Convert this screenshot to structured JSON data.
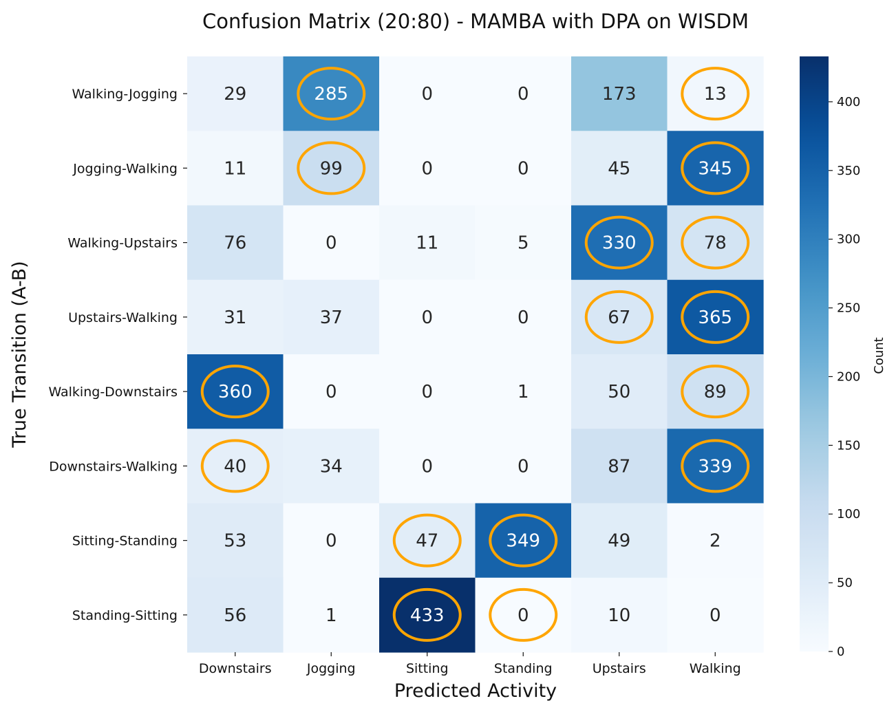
{
  "chart_data": {
    "type": "heatmap",
    "title": "Confusion Matrix (20:80) - MAMBA with DPA on WISDM",
    "xlabel": "Predicted Activity",
    "ylabel": "True Transition (A-B)",
    "x_categories": [
      "Downstairs",
      "Jogging",
      "Sitting",
      "Standing",
      "Upstairs",
      "Walking"
    ],
    "y_categories": [
      "Walking-Jogging",
      "Jogging-Walking",
      "Walking-Upstairs",
      "Upstairs-Walking",
      "Walking-Downstairs",
      "Downstairs-Walking",
      "Sitting-Standing",
      "Standing-Sitting"
    ],
    "values": [
      [
        29,
        285,
        0,
        0,
        173,
        13
      ],
      [
        11,
        99,
        0,
        0,
        45,
        345
      ],
      [
        76,
        0,
        11,
        5,
        330,
        78
      ],
      [
        31,
        37,
        0,
        0,
        67,
        365
      ],
      [
        360,
        0,
        0,
        1,
        50,
        89
      ],
      [
        40,
        34,
        0,
        0,
        87,
        339
      ],
      [
        53,
        0,
        47,
        349,
        49,
        2
      ],
      [
        56,
        1,
        433,
        0,
        10,
        0
      ]
    ],
    "highlighted_cells": [
      [
        0,
        1
      ],
      [
        0,
        5
      ],
      [
        1,
        1
      ],
      [
        1,
        5
      ],
      [
        2,
        4
      ],
      [
        2,
        5
      ],
      [
        3,
        4
      ],
      [
        3,
        5
      ],
      [
        4,
        0
      ],
      [
        4,
        5
      ],
      [
        5,
        0
      ],
      [
        5,
        5
      ],
      [
        6,
        2
      ],
      [
        6,
        3
      ],
      [
        7,
        2
      ],
      [
        7,
        3
      ]
    ],
    "highlight_color": "#FFA500",
    "colormap": "Blues",
    "colorbar": {
      "label": "Count",
      "range": [
        0,
        433
      ],
      "ticks": [
        0,
        50,
        100,
        150,
        200,
        250,
        300,
        350,
        400
      ]
    }
  }
}
